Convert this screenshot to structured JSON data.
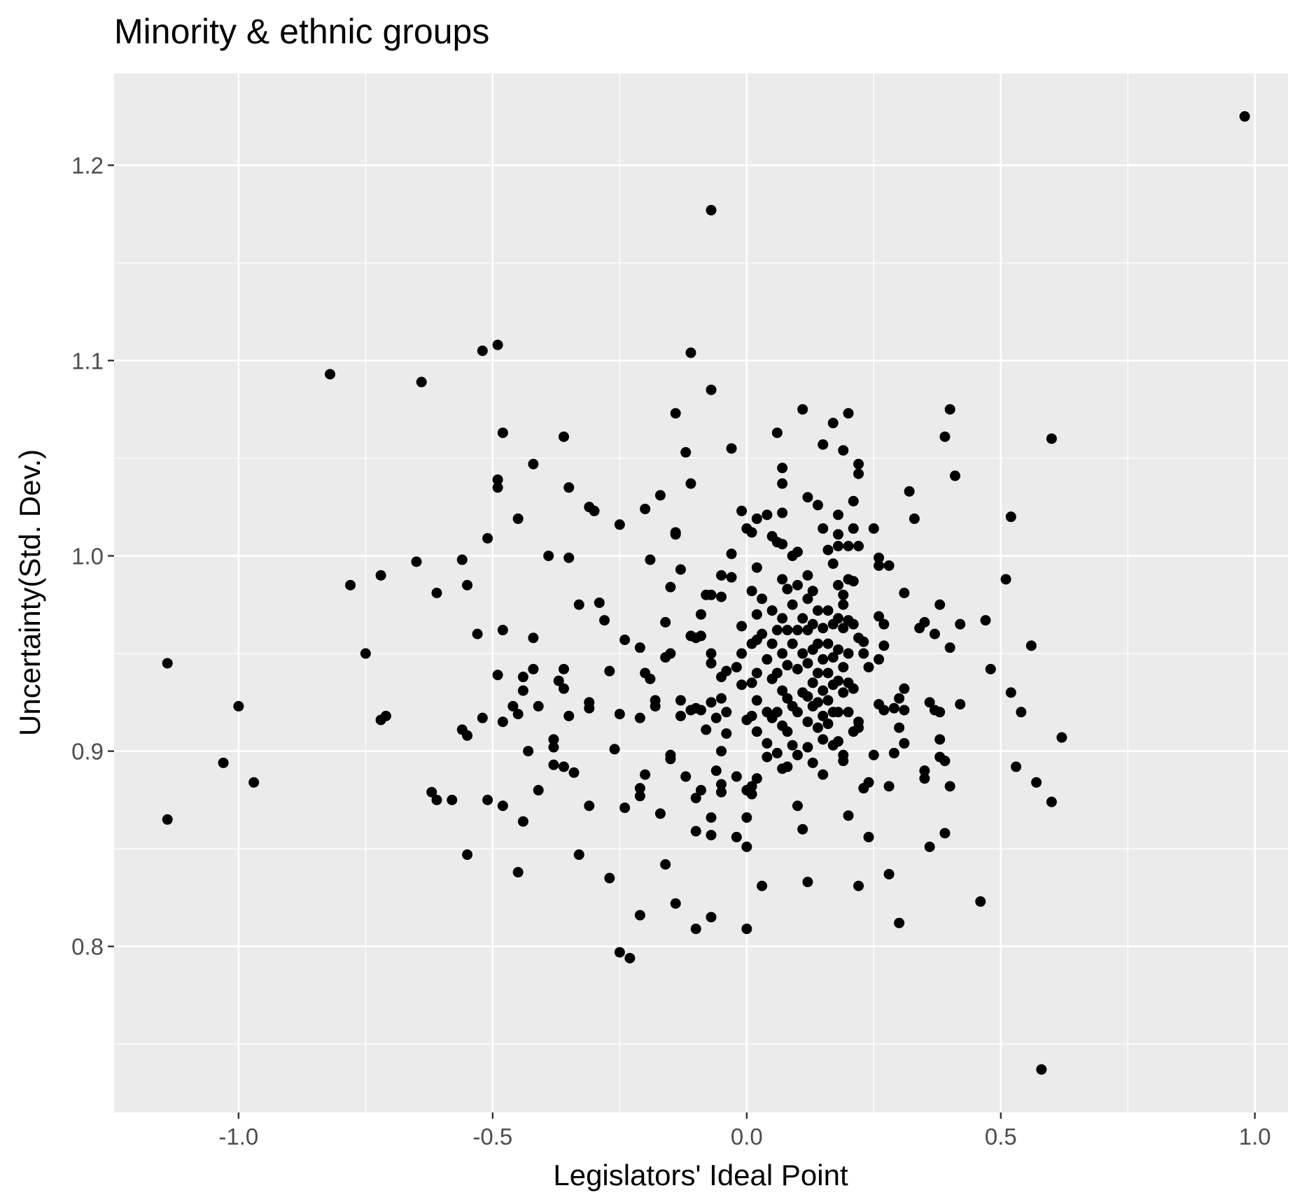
{
  "chart_data": {
    "type": "scatter",
    "title": "Minority & ethnic groups",
    "xlabel": "Legislators' Ideal Point",
    "ylabel": "Uncertainty(Std. Dev.)",
    "xlim": [
      -1.245,
      1.065
    ],
    "ylim": [
      0.715,
      1.247
    ],
    "x_ticks": [
      -1.0,
      -0.5,
      0.0,
      0.5,
      1.0
    ],
    "x_tick_labels": [
      "-1.0",
      "-0.5",
      "0.0",
      "0.5",
      "1.0"
    ],
    "y_ticks": [
      0.8,
      0.9,
      1.0,
      1.1,
      1.2
    ],
    "y_tick_labels": [
      "0.8",
      "0.9",
      "1.0",
      "1.1",
      "1.2"
    ],
    "x_minor_ticks": [
      -0.75,
      -0.25,
      0.25,
      0.75
    ],
    "y_minor_ticks": [
      0.75,
      0.85,
      0.95,
      1.05,
      1.15
    ],
    "grid": true,
    "legend": "none",
    "colors": {
      "panel": "#ebebeb",
      "grid": "#ffffff",
      "point": "#000000",
      "tick": "#333333"
    },
    "points": [
      [
        0.98,
        1.225
      ],
      [
        -0.07,
        1.177
      ],
      [
        0.58,
        0.737
      ],
      [
        -0.82,
        1.093
      ],
      [
        -0.64,
        1.089
      ],
      [
        -0.52,
        1.105
      ],
      [
        -0.49,
        1.108
      ],
      [
        -0.11,
        1.104
      ],
      [
        -0.07,
        1.085
      ],
      [
        -1.14,
        0.945
      ],
      [
        -1.14,
        0.865
      ],
      [
        -1.0,
        0.923
      ],
      [
        -1.03,
        0.894
      ],
      [
        -0.97,
        0.884
      ],
      [
        -0.78,
        0.985
      ],
      [
        -0.75,
        0.95
      ],
      [
        -0.72,
        0.99
      ],
      [
        -0.72,
        0.916
      ],
      [
        -0.71,
        0.918
      ],
      [
        -0.65,
        0.997
      ],
      [
        -0.62,
        0.879
      ],
      [
        -0.61,
        0.875
      ],
      [
        -0.61,
        0.981
      ],
      [
        -0.58,
        0.875
      ],
      [
        -0.56,
        0.998
      ],
      [
        -0.56,
        0.911
      ],
      [
        -0.55,
        0.985
      ],
      [
        -0.55,
        0.908
      ],
      [
        -0.55,
        0.847
      ],
      [
        -0.53,
        0.96
      ],
      [
        -0.52,
        0.917
      ],
      [
        -0.51,
        0.875
      ],
      [
        -0.51,
        1.009
      ],
      [
        -0.49,
        1.039
      ],
      [
        -0.49,
        1.035
      ],
      [
        -0.49,
        0.939
      ],
      [
        -0.48,
        1.063
      ],
      [
        -0.48,
        0.962
      ],
      [
        -0.48,
        0.915
      ],
      [
        -0.48,
        0.872
      ],
      [
        -0.46,
        0.923
      ],
      [
        -0.45,
        1.019
      ],
      [
        -0.45,
        0.919
      ],
      [
        -0.45,
        0.838
      ],
      [
        -0.44,
        0.938
      ],
      [
        -0.44,
        0.931
      ],
      [
        -0.44,
        0.864
      ],
      [
        -0.43,
        0.9
      ],
      [
        -0.42,
        1.047
      ],
      [
        -0.42,
        0.958
      ],
      [
        -0.42,
        0.942
      ],
      [
        -0.41,
        0.923
      ],
      [
        -0.41,
        0.88
      ],
      [
        -0.39,
        1.0
      ],
      [
        -0.38,
        0.906
      ],
      [
        -0.38,
        0.902
      ],
      [
        -0.38,
        0.893
      ],
      [
        -0.37,
        0.936
      ],
      [
        -0.36,
        0.942
      ],
      [
        -0.36,
        0.932
      ],
      [
        -0.36,
        0.892
      ],
      [
        -0.36,
        1.061
      ],
      [
        -0.35,
        1.035
      ],
      [
        -0.35,
        0.999
      ],
      [
        -0.35,
        0.918
      ],
      [
        -0.34,
        0.889
      ],
      [
        -0.33,
        0.975
      ],
      [
        -0.33,
        0.847
      ],
      [
        -0.31,
        0.925
      ],
      [
        -0.31,
        0.922
      ],
      [
        -0.31,
        0.872
      ],
      [
        -0.31,
        1.025
      ],
      [
        -0.3,
        1.023
      ],
      [
        -0.29,
        0.976
      ],
      [
        -0.28,
        0.967
      ],
      [
        -0.27,
        0.941
      ],
      [
        -0.27,
        0.835
      ],
      [
        -0.26,
        0.901
      ],
      [
        -0.25,
        1.016
      ],
      [
        -0.25,
        0.919
      ],
      [
        -0.25,
        0.797
      ],
      [
        -0.24,
        0.957
      ],
      [
        -0.24,
        0.871
      ],
      [
        -0.23,
        0.794
      ],
      [
        -0.21,
        0.953
      ],
      [
        -0.21,
        0.917
      ],
      [
        -0.21,
        0.881
      ],
      [
        -0.21,
        0.877
      ],
      [
        -0.21,
        0.816
      ],
      [
        -0.2,
        1.024
      ],
      [
        -0.2,
        0.94
      ],
      [
        -0.2,
        0.888
      ],
      [
        -0.19,
        0.998
      ],
      [
        -0.19,
        0.937
      ],
      [
        -0.18,
        0.926
      ],
      [
        -0.18,
        0.923
      ],
      [
        -0.17,
        1.031
      ],
      [
        -0.17,
        0.868
      ],
      [
        -0.16,
        0.966
      ],
      [
        -0.16,
        0.948
      ],
      [
        -0.16,
        0.842
      ],
      [
        -0.15,
        0.984
      ],
      [
        -0.15,
        0.95
      ],
      [
        -0.15,
        0.898
      ],
      [
        -0.15,
        0.896
      ],
      [
        -0.14,
        1.073
      ],
      [
        -0.14,
        1.012
      ],
      [
        -0.14,
        1.011
      ],
      [
        -0.14,
        0.822
      ],
      [
        -0.13,
        0.993
      ],
      [
        -0.13,
        0.926
      ],
      [
        -0.13,
        0.918
      ],
      [
        -0.12,
        1.053
      ],
      [
        -0.12,
        0.887
      ],
      [
        -0.11,
        1.037
      ],
      [
        -0.11,
        0.959
      ],
      [
        -0.11,
        0.921
      ],
      [
        -0.1,
        0.958
      ],
      [
        -0.1,
        0.922
      ],
      [
        -0.1,
        0.876
      ],
      [
        -0.1,
        0.859
      ],
      [
        -0.1,
        0.809
      ],
      [
        -0.09,
        0.959
      ],
      [
        -0.09,
        0.97
      ],
      [
        -0.09,
        0.921
      ],
      [
        -0.09,
        0.88
      ],
      [
        -0.08,
        0.98
      ],
      [
        -0.08,
        0.911
      ],
      [
        -0.07,
        0.98
      ],
      [
        -0.07,
        0.95
      ],
      [
        -0.07,
        0.945
      ],
      [
        -0.07,
        0.925
      ],
      [
        -0.07,
        0.866
      ],
      [
        -0.07,
        0.857
      ],
      [
        -0.07,
        0.815
      ],
      [
        -0.06,
        0.917
      ],
      [
        -0.06,
        0.89
      ],
      [
        -0.05,
        0.99
      ],
      [
        -0.05,
        0.979
      ],
      [
        -0.05,
        0.938
      ],
      [
        -0.05,
        0.927
      ],
      [
        -0.05,
        0.9
      ],
      [
        -0.05,
        0.883
      ],
      [
        -0.05,
        0.879
      ],
      [
        -0.04,
        0.941
      ],
      [
        -0.04,
        0.92
      ],
      [
        -0.04,
        0.909
      ],
      [
        -0.03,
        1.055
      ],
      [
        -0.03,
        1.001
      ],
      [
        -0.03,
        0.989
      ],
      [
        -0.02,
        0.943
      ],
      [
        -0.02,
        0.887
      ],
      [
        -0.02,
        0.856
      ],
      [
        -0.01,
        1.023
      ],
      [
        -0.01,
        0.964
      ],
      [
        -0.01,
        0.934
      ],
      [
        -0.01,
        0.95
      ],
      [
        0.0,
        1.014
      ],
      [
        0.0,
        0.916
      ],
      [
        0.0,
        0.88
      ],
      [
        0.0,
        0.866
      ],
      [
        0.0,
        0.851
      ],
      [
        0.0,
        0.809
      ],
      [
        0.01,
        0.982
      ],
      [
        0.01,
        0.955
      ],
      [
        0.01,
        0.935
      ],
      [
        0.01,
        0.918
      ],
      [
        0.01,
        0.882
      ],
      [
        0.01,
        1.012
      ],
      [
        0.01,
        0.878
      ],
      [
        0.02,
        1.019
      ],
      [
        0.02,
        0.994
      ],
      [
        0.02,
        0.97
      ],
      [
        0.02,
        0.957
      ],
      [
        0.02,
        0.94
      ],
      [
        0.02,
        0.926
      ],
      [
        0.02,
        0.91
      ],
      [
        0.02,
        0.886
      ],
      [
        0.03,
        0.831
      ],
      [
        0.03,
        0.978
      ],
      [
        0.03,
        0.96
      ],
      [
        0.04,
        1.021
      ],
      [
        0.04,
        0.947
      ],
      [
        0.04,
        0.92
      ],
      [
        0.04,
        0.904
      ],
      [
        0.04,
        0.897
      ],
      [
        0.05,
        1.01
      ],
      [
        0.05,
        0.972
      ],
      [
        0.05,
        0.955
      ],
      [
        0.05,
        0.937
      ],
      [
        0.05,
        0.917
      ],
      [
        0.06,
        1.063
      ],
      [
        0.06,
        1.007
      ],
      [
        0.06,
        0.962
      ],
      [
        0.06,
        0.94
      ],
      [
        0.06,
        0.92
      ],
      [
        0.06,
        0.899
      ],
      [
        0.07,
        1.045
      ],
      [
        0.07,
        1.037
      ],
      [
        0.07,
        1.022
      ],
      [
        0.07,
        1.006
      ],
      [
        0.07,
        0.988
      ],
      [
        0.07,
        0.968
      ],
      [
        0.07,
        0.95
      ],
      [
        0.07,
        0.931
      ],
      [
        0.07,
        0.913
      ],
      [
        0.07,
        0.891
      ],
      [
        0.08,
        0.983
      ],
      [
        0.08,
        0.962
      ],
      [
        0.08,
        0.944
      ],
      [
        0.08,
        0.927
      ],
      [
        0.08,
        0.91
      ],
      [
        0.08,
        0.892
      ],
      [
        0.09,
        1.0
      ],
      [
        0.09,
        0.975
      ],
      [
        0.09,
        0.955
      ],
      [
        0.09,
        0.923
      ],
      [
        0.09,
        0.903
      ],
      [
        0.1,
        1.002
      ],
      [
        0.1,
        0.985
      ],
      [
        0.1,
        0.962
      ],
      [
        0.1,
        0.942
      ],
      [
        0.1,
        0.92
      ],
      [
        0.1,
        0.898
      ],
      [
        0.1,
        0.872
      ],
      [
        0.11,
        1.075
      ],
      [
        0.11,
        0.968
      ],
      [
        0.11,
        0.95
      ],
      [
        0.11,
        0.93
      ],
      [
        0.11,
        0.86
      ],
      [
        0.12,
        1.03
      ],
      [
        0.12,
        0.99
      ],
      [
        0.12,
        0.978
      ],
      [
        0.12,
        0.962
      ],
      [
        0.12,
        0.945
      ],
      [
        0.12,
        0.928
      ],
      [
        0.12,
        0.915
      ],
      [
        0.12,
        0.902
      ],
      [
        0.12,
        0.833
      ],
      [
        0.13,
        0.982
      ],
      [
        0.13,
        0.965
      ],
      [
        0.13,
        0.952
      ],
      [
        0.13,
        0.935
      ],
      [
        0.13,
        0.923
      ],
      [
        0.13,
        0.894
      ],
      [
        0.14,
        1.026
      ],
      [
        0.14,
        0.972
      ],
      [
        0.14,
        0.955
      ],
      [
        0.14,
        0.94
      ],
      [
        0.14,
        0.925
      ],
      [
        0.14,
        0.912
      ],
      [
        0.15,
        1.057
      ],
      [
        0.15,
        1.014
      ],
      [
        0.15,
        0.963
      ],
      [
        0.15,
        0.947
      ],
      [
        0.15,
        0.931
      ],
      [
        0.15,
        0.918
      ],
      [
        0.15,
        0.906
      ],
      [
        0.15,
        0.888
      ],
      [
        0.16,
        1.003
      ],
      [
        0.16,
        0.972
      ],
      [
        0.16,
        0.955
      ],
      [
        0.16,
        0.94
      ],
      [
        0.16,
        0.926
      ],
      [
        0.16,
        0.914
      ],
      [
        0.17,
        1.068
      ],
      [
        0.17,
        0.996
      ],
      [
        0.17,
        0.965
      ],
      [
        0.17,
        0.948
      ],
      [
        0.17,
        0.934
      ],
      [
        0.17,
        0.92
      ],
      [
        0.17,
        0.903
      ],
      [
        0.18,
        1.021
      ],
      [
        0.18,
        1.011
      ],
      [
        0.18,
        1.005
      ],
      [
        0.18,
        0.985
      ],
      [
        0.18,
        0.968
      ],
      [
        0.18,
        0.952
      ],
      [
        0.18,
        0.936
      ],
      [
        0.18,
        0.92
      ],
      [
        0.18,
        0.905
      ],
      [
        0.19,
        1.054
      ],
      [
        0.19,
        0.98
      ],
      [
        0.19,
        0.975
      ],
      [
        0.19,
        0.963
      ],
      [
        0.19,
        0.943
      ],
      [
        0.19,
        0.93
      ],
      [
        0.19,
        0.898
      ],
      [
        0.19,
        0.895
      ],
      [
        0.2,
        1.073
      ],
      [
        0.2,
        1.005
      ],
      [
        0.2,
        0.988
      ],
      [
        0.2,
        0.967
      ],
      [
        0.2,
        0.95
      ],
      [
        0.2,
        0.935
      ],
      [
        0.2,
        0.92
      ],
      [
        0.2,
        0.867
      ],
      [
        0.21,
        1.028
      ],
      [
        0.21,
        1.014
      ],
      [
        0.21,
        0.987
      ],
      [
        0.21,
        0.965
      ],
      [
        0.21,
        0.932
      ],
      [
        0.21,
        0.91
      ],
      [
        0.22,
        1.047
      ],
      [
        0.22,
        1.042
      ],
      [
        0.22,
        1.005
      ],
      [
        0.22,
        0.958
      ],
      [
        0.22,
        0.915
      ],
      [
        0.22,
        0.912
      ],
      [
        0.22,
        0.831
      ],
      [
        0.23,
        0.956
      ],
      [
        0.23,
        0.95
      ],
      [
        0.23,
        0.881
      ],
      [
        0.24,
        0.943
      ],
      [
        0.24,
        0.884
      ],
      [
        0.24,
        0.856
      ],
      [
        0.25,
        1.014
      ],
      [
        0.25,
        0.898
      ],
      [
        0.26,
        0.999
      ],
      [
        0.26,
        0.995
      ],
      [
        0.26,
        0.969
      ],
      [
        0.26,
        0.947
      ],
      [
        0.26,
        0.924
      ],
      [
        0.27,
        0.965
      ],
      [
        0.27,
        0.954
      ],
      [
        0.27,
        0.921
      ],
      [
        0.28,
        0.995
      ],
      [
        0.28,
        0.882
      ],
      [
        0.28,
        0.837
      ],
      [
        0.29,
        0.922
      ],
      [
        0.29,
        0.899
      ],
      [
        0.3,
        0.927
      ],
      [
        0.3,
        0.912
      ],
      [
        0.3,
        0.812
      ],
      [
        0.31,
        0.981
      ],
      [
        0.31,
        0.932
      ],
      [
        0.31,
        0.921
      ],
      [
        0.31,
        0.904
      ],
      [
        0.32,
        1.033
      ],
      [
        0.33,
        1.019
      ],
      [
        0.34,
        0.963
      ],
      [
        0.35,
        0.966
      ],
      [
        0.35,
        0.89
      ],
      [
        0.35,
        0.886
      ],
      [
        0.36,
        0.925
      ],
      [
        0.36,
        0.851
      ],
      [
        0.37,
        0.96
      ],
      [
        0.37,
        0.921
      ],
      [
        0.38,
        0.975
      ],
      [
        0.38,
        0.906
      ],
      [
        0.38,
        0.897
      ],
      [
        0.38,
        0.92
      ],
      [
        0.39,
        1.061
      ],
      [
        0.39,
        0.858
      ],
      [
        0.39,
        0.895
      ],
      [
        0.4,
        1.075
      ],
      [
        0.4,
        0.953
      ],
      [
        0.4,
        0.882
      ],
      [
        0.41,
        1.041
      ],
      [
        0.42,
        0.965
      ],
      [
        0.42,
        0.924
      ],
      [
        0.46,
        0.823
      ],
      [
        0.47,
        0.967
      ],
      [
        0.48,
        0.942
      ],
      [
        0.51,
        0.988
      ],
      [
        0.52,
        1.02
      ],
      [
        0.52,
        0.93
      ],
      [
        0.53,
        0.892
      ],
      [
        0.54,
        0.92
      ],
      [
        0.56,
        0.954
      ],
      [
        0.57,
        0.884
      ],
      [
        0.6,
        1.06
      ],
      [
        0.6,
        0.874
      ],
      [
        0.62,
        0.907
      ]
    ]
  }
}
